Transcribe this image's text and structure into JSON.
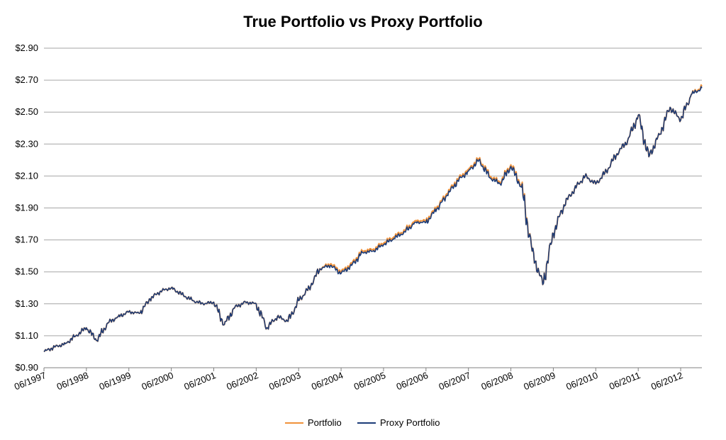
{
  "chart_data": {
    "type": "line",
    "title": "True Portfolio vs Proxy Portfolio",
    "xlabel": "",
    "ylabel": "",
    "ylim": [
      0.9,
      2.9
    ],
    "y_ticks": [
      "$0.90",
      "$1.10",
      "$1.30",
      "$1.50",
      "$1.70",
      "$1.90",
      "$2.10",
      "$2.30",
      "$2.50",
      "$2.70",
      "$2.90"
    ],
    "x_ticks": [
      "06/1997",
      "06/1998",
      "06/1999",
      "06/2000",
      "06/2001",
      "06/2002",
      "06/2003",
      "06/2004",
      "06/2005",
      "06/2006",
      "06/2007",
      "06/2008",
      "06/2009",
      "06/2010",
      "06/2011",
      "06/2012"
    ],
    "x_range": [
      "06/1997",
      "12/2012"
    ],
    "grid": "horizontal",
    "legend_position": "bottom",
    "x": [
      "06/1997",
      "09/1997",
      "12/1997",
      "03/1998",
      "06/1998",
      "09/1998",
      "12/1998",
      "03/1999",
      "06/1999",
      "09/1999",
      "12/1999",
      "03/2000",
      "06/2000",
      "09/2000",
      "12/2000",
      "03/2001",
      "06/2001",
      "09/2001",
      "12/2001",
      "03/2002",
      "06/2002",
      "09/2002",
      "12/2002",
      "03/2003",
      "06/2003",
      "09/2003",
      "12/2003",
      "03/2004",
      "06/2004",
      "09/2004",
      "12/2004",
      "03/2005",
      "06/2005",
      "09/2005",
      "12/2005",
      "03/2006",
      "06/2006",
      "09/2006",
      "12/2006",
      "03/2007",
      "06/2007",
      "09/2007",
      "12/2007",
      "03/2008",
      "06/2008",
      "09/2008",
      "12/2008",
      "03/2009",
      "06/2009",
      "09/2009",
      "12/2009",
      "03/2010",
      "06/2010",
      "09/2010",
      "12/2010",
      "03/2011",
      "06/2011",
      "09/2011",
      "12/2011",
      "03/2012",
      "06/2012",
      "09/2012",
      "12/2012"
    ],
    "series": [
      {
        "name": "Portfolio",
        "color": "#F0923A",
        "values": [
          1.0,
          1.03,
          1.05,
          1.1,
          1.15,
          1.07,
          1.18,
          1.22,
          1.25,
          1.24,
          1.33,
          1.38,
          1.4,
          1.36,
          1.32,
          1.3,
          1.31,
          1.17,
          1.28,
          1.31,
          1.3,
          1.15,
          1.22,
          1.19,
          1.32,
          1.4,
          1.52,
          1.55,
          1.5,
          1.55,
          1.63,
          1.64,
          1.68,
          1.72,
          1.76,
          1.82,
          1.82,
          1.9,
          1.99,
          2.08,
          2.14,
          2.21,
          2.1,
          2.06,
          2.17,
          2.04,
          1.63,
          1.42,
          1.74,
          1.92,
          2.02,
          2.1,
          2.05,
          2.13,
          2.24,
          2.32,
          2.48,
          2.22,
          2.36,
          2.53,
          2.45,
          2.61,
          2.66
        ]
      },
      {
        "name": "Proxy Portfolio",
        "color": "#1C3C78",
        "values": [
          1.0,
          1.03,
          1.05,
          1.1,
          1.15,
          1.07,
          1.18,
          1.22,
          1.25,
          1.24,
          1.33,
          1.38,
          1.4,
          1.36,
          1.32,
          1.3,
          1.31,
          1.17,
          1.28,
          1.31,
          1.3,
          1.15,
          1.22,
          1.19,
          1.32,
          1.4,
          1.52,
          1.54,
          1.49,
          1.54,
          1.62,
          1.63,
          1.67,
          1.71,
          1.75,
          1.81,
          1.81,
          1.89,
          1.98,
          2.07,
          2.13,
          2.2,
          2.09,
          2.05,
          2.16,
          2.03,
          1.63,
          1.42,
          1.74,
          1.92,
          2.02,
          2.1,
          2.05,
          2.13,
          2.24,
          2.32,
          2.48,
          2.22,
          2.36,
          2.53,
          2.45,
          2.61,
          2.65
        ]
      }
    ]
  }
}
